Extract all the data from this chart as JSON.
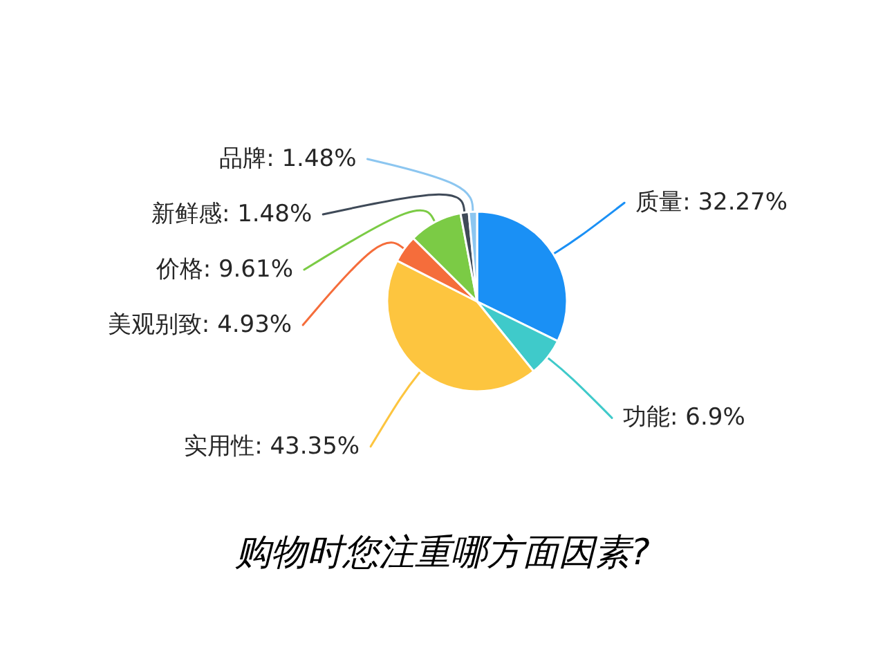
{
  "chart_data": {
    "type": "pie",
    "title": "购物时您注重哪方面因素?",
    "categories": [
      "质量",
      "功能",
      "实用性",
      "美观别致",
      "价格",
      "新鲜感",
      "品牌"
    ],
    "values": [
      32.27,
      6.9,
      43.35,
      4.93,
      9.61,
      1.48,
      1.48
    ],
    "colors": [
      "#1a90f5",
      "#3fcaca",
      "#fdc53f",
      "#f56d3b",
      "#7bcb45",
      "#3f4a58",
      "#8cc6f0"
    ],
    "value_labels": [
      "32.27%",
      "6.9%",
      "43.35%",
      "4.93%",
      "9.61%",
      "1.48%",
      "1.48%"
    ]
  }
}
